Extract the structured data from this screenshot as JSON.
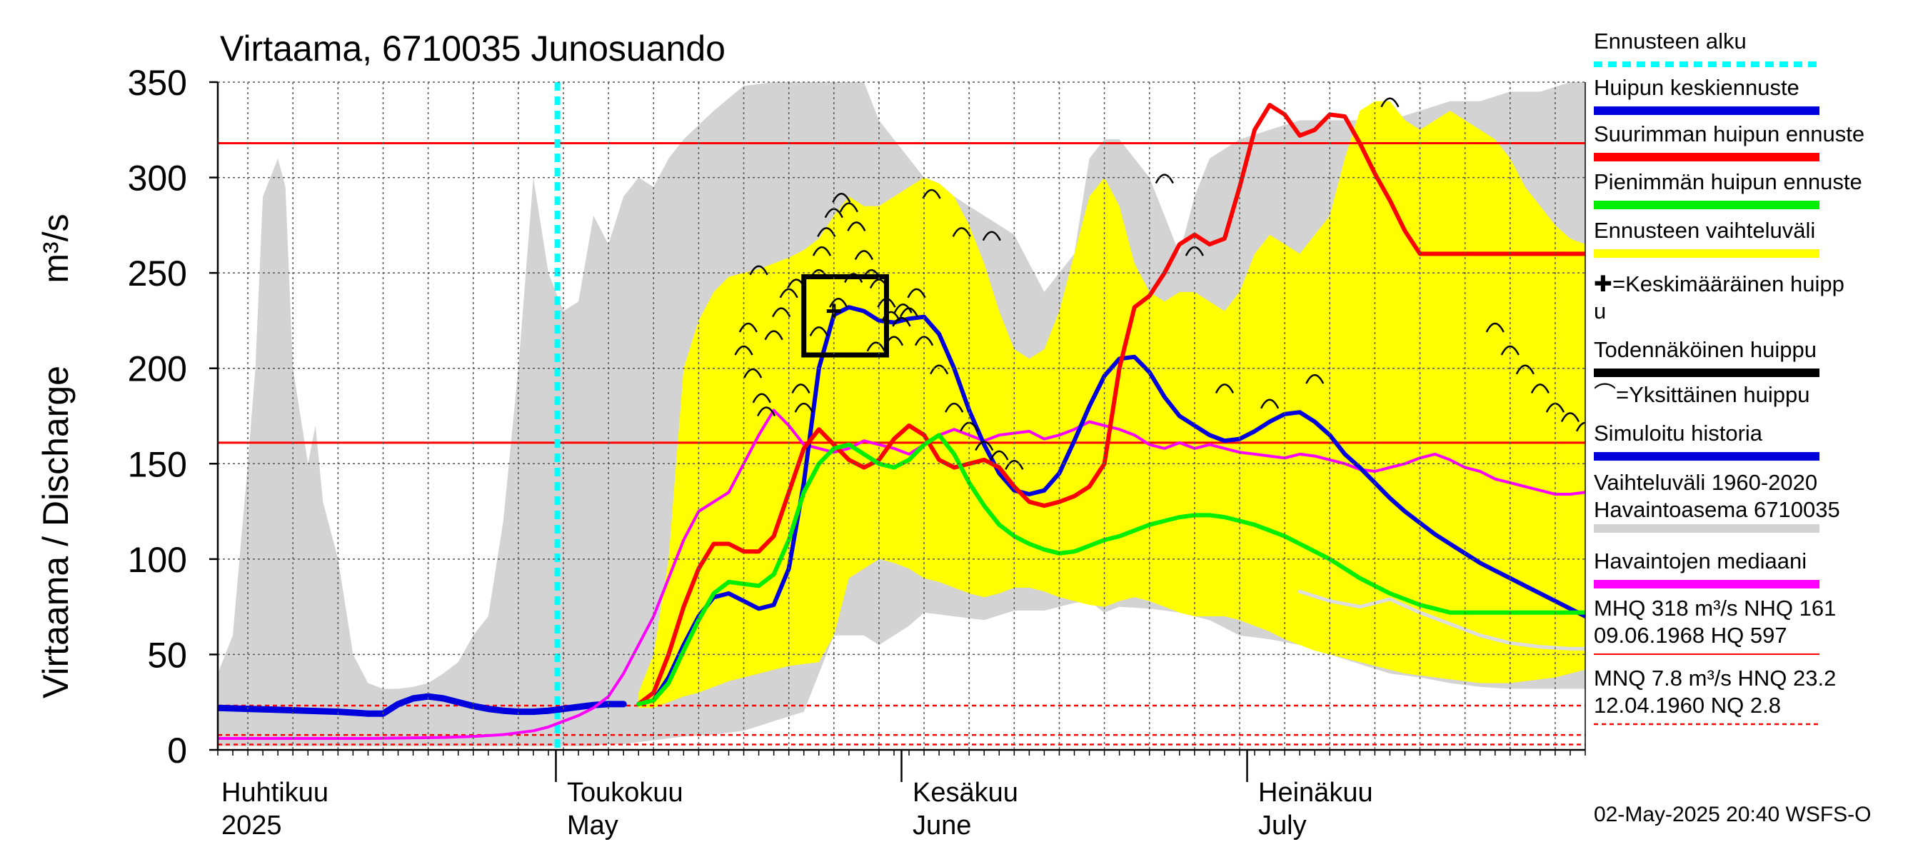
{
  "chart_data": {
    "type": "line",
    "title": "Virtaama, 6710035 Junosuando",
    "ylabel": "Virtaama / Discharge",
    "yunit": "m³/s",
    "ylim": [
      0,
      350
    ],
    "yticks": [
      0,
      50,
      100,
      150,
      200,
      250,
      300,
      350
    ],
    "xlim": [
      0,
      91
    ],
    "month_labels": [
      {
        "day": 0,
        "fi": "Huhtikuu",
        "en": "2025"
      },
      {
        "day": 23,
        "fi": "Toukokuu",
        "en": "May"
      },
      {
        "day": 46,
        "fi": "Kesäkuu",
        "en": "June"
      },
      {
        "day": 69,
        "fi": "Heinäkuu",
        "en": "July"
      }
    ],
    "forecast_start_day": 22.6,
    "reference_lines": [
      {
        "name": "MHQ",
        "value": 318,
        "color": "#ff0000",
        "style": "solid"
      },
      {
        "name": "NHQ",
        "value": 161,
        "color": "#ff0000",
        "style": "solid"
      },
      {
        "name": "HNQ",
        "value": 23.2,
        "color": "#ff0000",
        "style": "dashed"
      },
      {
        "name": "MNQ",
        "value": 7.8,
        "color": "#ff0000",
        "style": "dashed"
      },
      {
        "name": "NQ",
        "value": 2.8,
        "color": "#ff0000",
        "style": "dashed"
      }
    ],
    "historical_range": {
      "name": "Vaihteluväli 1960-2020 Havaintoasema 6710035",
      "color": "#d3d3d3",
      "x": [
        0,
        1,
        2,
        2.5,
        3,
        4,
        4.5,
        5,
        6,
        6.5,
        7,
        8,
        9,
        10,
        11,
        12,
        13,
        14,
        15,
        16,
        17,
        18,
        19,
        20,
        21,
        22,
        23,
        24,
        25,
        26,
        27,
        28,
        29,
        30,
        31,
        33,
        35,
        37,
        39,
        40,
        41,
        43,
        44,
        46,
        47,
        49,
        51,
        53,
        55,
        57,
        58,
        59,
        60,
        62,
        63,
        64,
        65,
        66,
        68,
        70,
        72,
        74,
        76,
        78,
        80,
        82,
        84,
        86,
        88,
        90,
        91
      ],
      "upper": [
        40,
        60,
        150,
        200,
        290,
        310,
        295,
        200,
        150,
        170,
        130,
        100,
        50,
        35,
        32,
        32,
        33,
        35,
        40,
        46,
        60,
        70,
        120,
        200,
        300,
        250,
        230,
        235,
        280,
        265,
        290,
        300,
        295,
        310,
        320,
        335,
        348,
        350,
        350,
        350,
        350,
        350,
        330,
        310,
        300,
        290,
        280,
        270,
        240,
        260,
        310,
        320,
        320,
        300,
        280,
        260,
        290,
        310,
        320,
        325,
        330,
        330,
        330,
        330,
        335,
        340,
        340,
        345,
        345,
        350,
        350
      ],
      "lower": [
        2,
        2,
        2,
        2,
        2,
        2,
        2,
        2,
        2,
        2,
        2,
        2,
        2,
        2,
        2,
        2,
        2,
        2,
        2,
        2,
        2,
        2,
        2,
        2,
        2,
        2,
        2,
        2,
        2,
        3,
        3,
        4,
        5,
        6,
        7,
        8,
        10,
        15,
        20,
        40,
        60,
        60,
        55,
        65,
        72,
        70,
        68,
        73,
        73,
        77,
        78,
        72,
        75,
        74,
        73,
        72,
        70,
        68,
        60,
        58,
        55,
        50,
        45,
        40,
        38,
        35,
        33,
        32,
        32,
        32,
        32
      ]
    },
    "forecast_range": {
      "name": "Ennusteen vaihteluväli",
      "color": "#ffff00",
      "x": [
        28,
        29,
        30,
        31,
        32,
        33,
        34,
        35,
        36,
        37,
        38,
        39,
        40,
        41,
        42,
        43,
        44,
        45,
        46,
        47,
        48,
        49,
        50,
        51,
        52,
        53,
        54,
        55,
        56,
        57,
        58,
        59,
        60,
        61,
        62,
        63,
        64,
        65,
        66,
        67,
        68,
        69,
        70,
        71,
        72,
        73,
        74,
        75,
        76,
        77,
        78,
        79,
        80,
        81,
        82,
        83,
        84,
        85,
        86,
        87,
        88,
        89,
        90,
        91
      ],
      "upper": [
        30,
        50,
        100,
        200,
        225,
        240,
        248,
        250,
        252,
        255,
        258,
        262,
        268,
        280,
        290,
        285,
        285,
        290,
        295,
        300,
        297,
        290,
        275,
        255,
        230,
        210,
        205,
        210,
        230,
        260,
        290,
        300,
        285,
        255,
        240,
        235,
        240,
        240,
        235,
        230,
        240,
        260,
        270,
        265,
        260,
        270,
        280,
        310,
        335,
        340,
        340,
        330,
        325,
        330,
        335,
        330,
        325,
        320,
        310,
        295,
        285,
        275,
        268,
        265
      ],
      "lower": [
        22,
        22,
        25,
        28,
        30,
        33,
        36,
        38,
        40,
        42,
        44,
        45,
        46,
        60,
        90,
        95,
        100,
        98,
        95,
        90,
        88,
        85,
        82,
        80,
        82,
        85,
        85,
        83,
        80,
        78,
        76,
        75,
        78,
        80,
        78,
        75,
        72,
        70,
        70,
        70,
        68,
        65,
        62,
        58,
        55,
        52,
        50,
        48,
        46,
        44,
        42,
        40,
        39,
        38,
        37,
        36,
        35,
        35,
        35,
        36,
        37,
        38,
        40,
        42
      ]
    },
    "series": [
      {
        "name": "Simuloitu historia",
        "color": "#0000dd",
        "width": 9,
        "x": [
          0,
          2,
          4,
          6,
          8,
          10,
          11,
          12,
          13,
          14,
          15,
          16,
          17,
          18,
          19,
          20,
          21,
          22,
          23,
          24,
          25,
          26,
          27
        ],
        "values": [
          22,
          21.5,
          21,
          20.5,
          20,
          19,
          19,
          24,
          27,
          28,
          27,
          25,
          23,
          21.5,
          20.5,
          20,
          20,
          20.5,
          21.5,
          22.5,
          23.5,
          24,
          24
        ]
      },
      {
        "name": "Havaintojen mediaani",
        "color": "#ff00ff",
        "width": 4,
        "x": [
          0,
          5,
          10,
          15,
          17,
          19,
          21,
          22,
          23,
          24,
          25,
          26,
          27,
          28,
          29,
          30,
          31,
          32,
          33,
          34,
          35,
          36,
          37,
          38,
          39,
          40,
          41,
          42,
          43,
          44,
          45,
          46,
          47,
          48,
          49,
          50,
          51,
          52,
          53,
          54,
          55,
          56,
          57,
          58,
          59,
          60,
          61,
          62,
          63,
          64,
          65,
          66,
          67,
          68,
          69,
          70,
          71,
          72,
          73,
          74,
          75,
          76,
          77,
          78,
          79,
          80,
          81,
          82,
          83,
          84,
          85,
          86,
          87,
          88,
          89,
          90,
          91
        ],
        "values": [
          6,
          6,
          6,
          6.5,
          7,
          8,
          10,
          12,
          15,
          18,
          22,
          28,
          40,
          55,
          70,
          90,
          110,
          125,
          130,
          135,
          150,
          165,
          178,
          170,
          160,
          158,
          156,
          158,
          162,
          160,
          158,
          155,
          160,
          165,
          168,
          165,
          162,
          165,
          166,
          167,
          163,
          165,
          168,
          172,
          170,
          168,
          165,
          160,
          158,
          161,
          158,
          160,
          158,
          156,
          155,
          154,
          153,
          155,
          154,
          152,
          150,
          147,
          146,
          148,
          150,
          153,
          155,
          152,
          148,
          146,
          142,
          140,
          138,
          136,
          134,
          134,
          135
        ]
      },
      {
        "name": "Huipun keskiennuste",
        "color": "#0000dd",
        "width": 6,
        "x": [
          28,
          29,
          30,
          31,
          32,
          33,
          34,
          35,
          36,
          37,
          38,
          39,
          40,
          41,
          42,
          43,
          44,
          45,
          46,
          47,
          48,
          49,
          50,
          51,
          52,
          53,
          54,
          55,
          56,
          57,
          58,
          59,
          60,
          61,
          62,
          63,
          64,
          65,
          66,
          67,
          68,
          69,
          70,
          71,
          72,
          73,
          74,
          75,
          76,
          77,
          78,
          79,
          80,
          81,
          82,
          83,
          84,
          85,
          86,
          87,
          88,
          89,
          90,
          91
        ],
        "values": [
          24,
          26,
          38,
          55,
          70,
          80,
          82,
          78,
          74,
          76,
          95,
          140,
          200,
          228,
          232,
          230,
          225,
          224,
          226,
          227,
          218,
          200,
          178,
          160,
          145,
          136,
          134,
          136,
          145,
          162,
          180,
          196,
          205,
          206,
          198,
          185,
          175,
          170,
          165,
          162,
          163,
          167,
          172,
          176,
          177,
          172,
          165,
          155,
          148,
          140,
          132,
          125,
          119,
          113,
          108,
          103,
          98,
          94,
          90,
          86,
          82,
          78,
          74,
          70
        ]
      },
      {
        "name": "Suurimman huipun ennuste",
        "color": "#ff0000",
        "width": 6,
        "x": [
          28,
          29,
          30,
          31,
          32,
          33,
          34,
          35,
          36,
          37,
          38,
          39,
          40,
          41,
          42,
          43,
          44,
          45,
          46,
          47,
          48,
          49,
          50,
          51,
          52,
          53,
          54,
          55,
          56,
          57,
          58,
          59,
          60,
          61,
          62,
          63,
          64,
          65,
          66,
          67,
          68,
          69,
          70,
          71,
          72,
          73,
          74,
          75,
          76,
          77,
          78,
          79,
          80,
          81,
          82,
          83,
          84,
          85,
          86,
          87,
          88,
          89,
          90,
          91
        ],
        "values": [
          24,
          30,
          50,
          75,
          95,
          108,
          108,
          104,
          104,
          112,
          135,
          158,
          168,
          160,
          152,
          148,
          152,
          163,
          170,
          165,
          152,
          148,
          150,
          152,
          148,
          138,
          130,
          128,
          130,
          133,
          138,
          150,
          200,
          232,
          238,
          250,
          265,
          270,
          265,
          268,
          295,
          325,
          338,
          333,
          322,
          325,
          333,
          332,
          318,
          302,
          288,
          272,
          260,
          260,
          260,
          260,
          260,
          260,
          260,
          260,
          260,
          260,
          260,
          260
        ]
      },
      {
        "name": "Pienimmän huipun ennuste",
        "color": "#00ee00",
        "width": 6,
        "x": [
          28,
          29,
          30,
          31,
          32,
          33,
          34,
          35,
          36,
          37,
          38,
          39,
          40,
          41,
          42,
          43,
          44,
          45,
          46,
          47,
          48,
          49,
          50,
          51,
          52,
          53,
          54,
          55,
          56,
          57,
          58,
          59,
          60,
          61,
          62,
          63,
          64,
          65,
          66,
          67,
          68,
          69,
          70,
          71,
          72,
          73,
          74,
          75,
          76,
          77,
          78,
          79,
          80,
          81,
          82,
          83,
          84,
          85,
          86,
          87,
          88,
          89,
          90,
          91
        ],
        "values": [
          24,
          26,
          35,
          52,
          68,
          82,
          88,
          87,
          86,
          92,
          110,
          135,
          150,
          158,
          160,
          155,
          150,
          148,
          152,
          160,
          165,
          155,
          140,
          128,
          118,
          112,
          108,
          105,
          103,
          104,
          107,
          110,
          112,
          115,
          118,
          120,
          122,
          123,
          123,
          122,
          120,
          118,
          115,
          112,
          108,
          104,
          100,
          95,
          90,
          86,
          82,
          79,
          76,
          74,
          72,
          72,
          72,
          72,
          72,
          72,
          72,
          72,
          72,
          72
        ]
      },
      {
        "name": "Keskimääräinen lisä",
        "color": "#dddddd",
        "width": 5,
        "x": [
          72,
          74,
          76,
          78,
          80,
          82,
          84,
          86,
          88,
          90,
          91
        ],
        "values": [
          83,
          78,
          75,
          79,
          72,
          66,
          60,
          56,
          54,
          53,
          53
        ]
      }
    ],
    "individual_peaks": {
      "name": "Yksittäinen huippu",
      "x": [
        36,
        37,
        37.5,
        38,
        38.5,
        39,
        40,
        40.2,
        40.5,
        41,
        41.5,
        42,
        42.5,
        43,
        43.5,
        44,
        44.5,
        45,
        45.5,
        46,
        46.5,
        47,
        48,
        49,
        50,
        51,
        52,
        53,
        35,
        35.3,
        35.6,
        36.2,
        36.5,
        38.8,
        40,
        41.3,
        42.3,
        43.8,
        44.8,
        45.6,
        47.5,
        49.5,
        51.5,
        63,
        65,
        67,
        70,
        73,
        78,
        85,
        86,
        87,
        88,
        89,
        90,
        91
      ],
      "values": [
        252,
        218,
        230,
        240,
        245,
        180,
        250,
        262,
        272,
        282,
        290,
        285,
        275,
        260,
        250,
        245,
        235,
        215,
        225,
        230,
        240,
        215,
        200,
        180,
        170,
        160,
        155,
        150,
        210,
        222,
        198,
        185,
        178,
        190,
        220,
        235,
        248,
        212,
        228,
        232,
        292,
        272,
        270,
        300,
        262,
        190,
        182,
        195,
        340,
        222,
        210,
        200,
        190,
        180,
        175,
        170
      ]
    },
    "mean_peak": {
      "name": "Keskimääräinen huippu",
      "x": 41,
      "value": 230
    },
    "probable_peak_box": {
      "name": "Todennäköinen huippu",
      "x0": 39,
      "x1": 44.5,
      "y0": 207,
      "y1": 248
    },
    "legend": [
      {
        "label": "Ennusteen alku",
        "color": "#00ffff",
        "style": "dotted"
      },
      {
        "label": "Huipun keskiennuste",
        "color": "#0000dd",
        "style": "solid"
      },
      {
        "label": "Suurimman huipun ennuste",
        "color": "#ff0000",
        "style": "solid"
      },
      {
        "label": "Pienimmän huipun ennuste",
        "color": "#00ee00",
        "style": "solid"
      },
      {
        "label": "Ennusteen vaihteluväli",
        "color": "#ffff00",
        "style": "solid"
      },
      {
        "label": "✚=Keskimääräinen huipp",
        "label2": "u",
        "color": "",
        "style": "none"
      },
      {
        "label": "Todennäköinen huippu",
        "color": "#000000",
        "style": "solid"
      },
      {
        "label": "⌒=Yksittäinen huippu",
        "color": "",
        "style": "none"
      },
      {
        "label": "Simuloitu historia",
        "color": "#0000dd",
        "style": "solid"
      },
      {
        "label": "Vaihteluväli 1960-2020",
        "label2": " Havaintoasema 6710035",
        "color": "#d3d3d3",
        "style": "solid"
      },
      {
        "label": "Havaintojen mediaani",
        "color": "#ff00ff",
        "style": "solid"
      },
      {
        "label": "MHQ  318 m³/s NHQ  161",
        "label2": "09.06.1968 HQ  597",
        "color": "#ff0000",
        "style": "thin"
      },
      {
        "label": "MNQ  7.8 m³/s HNQ 23.2",
        "label2": "12.04.1960 NQ  2.8",
        "color": "#ff0000",
        "style": "dashed"
      }
    ],
    "footer": "02-May-2025 20:40 WSFS-O"
  }
}
